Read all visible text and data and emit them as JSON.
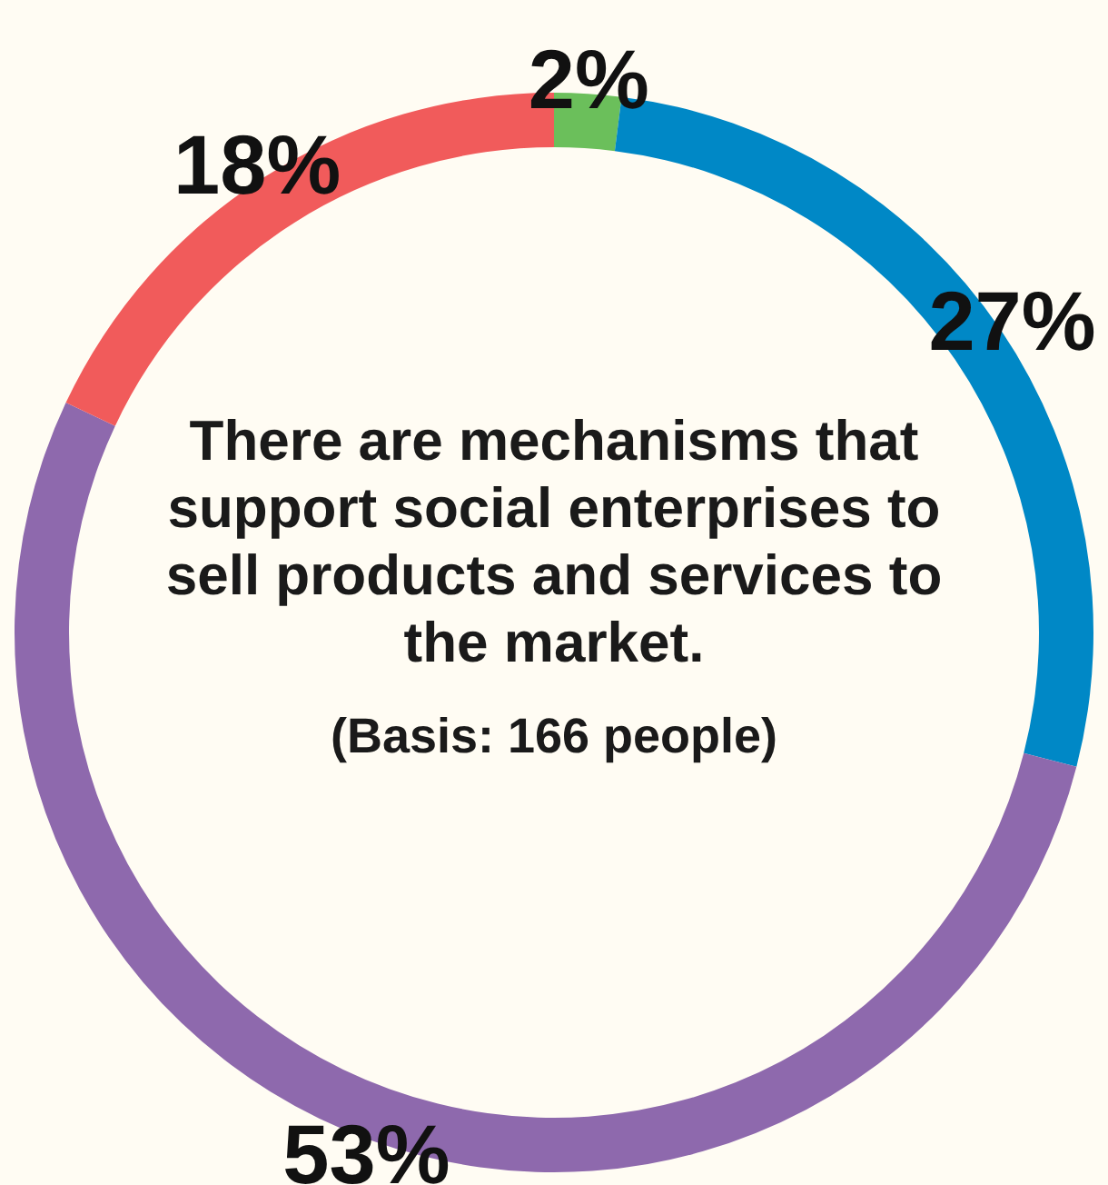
{
  "chart_data": {
    "type": "donut",
    "title": "There are mechanisms that support social enterprises to sell products and services to the market.",
    "annotations": [
      "(Basis: 166 people)"
    ],
    "categories": [
      null,
      null,
      null,
      null
    ],
    "values": [
      2,
      27,
      53,
      18
    ],
    "colors": [
      "#6bbf5b",
      "#0088c6",
      "#8e69ad",
      "#f15b5b"
    ],
    "value_labels": [
      "2%",
      "27%",
      "53%",
      "18%"
    ]
  }
}
